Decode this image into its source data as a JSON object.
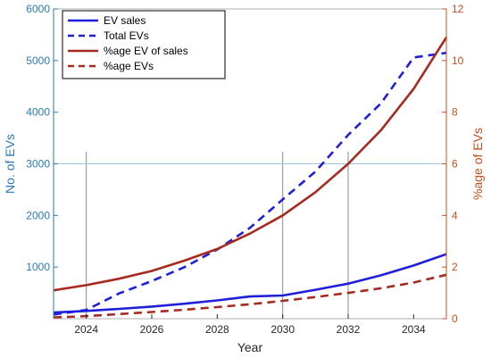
{
  "chart_data": {
    "type": "line",
    "xlabel": "Year",
    "ylabel_left": "No. of EVs",
    "ylabel_right": "%age of EVs",
    "xlim": [
      2023,
      2035
    ],
    "ylim_left": [
      0,
      6000
    ],
    "ylim_right": [
      0,
      12
    ],
    "x_ticks": [
      2024,
      2026,
      2028,
      2030,
      2032,
      2034
    ],
    "y_ticks_left": [
      1000,
      2000,
      3000,
      4000,
      5000,
      6000
    ],
    "y_ticks_right": [
      0,
      2,
      4,
      6,
      8,
      10,
      12
    ],
    "grid": "partial",
    "vertical_reference_lines": [
      2024,
      2030,
      2032
    ],
    "horizontal_reference_line_left": 3000,
    "legend_position": "top-left",
    "colors": {
      "left_axis": "#2a7ab9",
      "right_axis": "#c0501e",
      "blue_series": "#1f1fd9",
      "red_series": "#a62a1f",
      "ref_lines": "#8a8a8a"
    },
    "x": [
      2023,
      2024,
      2025,
      2026,
      2027,
      2028,
      2029,
      2030,
      2031,
      2032,
      2033,
      2034,
      2035
    ],
    "series": [
      {
        "name": "EV sales",
        "axis": "left",
        "style": "solid",
        "color": "#1f1fd9",
        "values": [
          120,
          150,
          190,
          235,
          290,
          355,
          430,
          450,
          560,
          680,
          840,
          1030,
          1250
        ]
      },
      {
        "name": "Total EVs",
        "axis": "left",
        "style": "dashed",
        "color": "#1f1fd9",
        "values": [
          80,
          170,
          490,
          730,
          1000,
          1340,
          1760,
          2310,
          2850,
          3560,
          4170,
          5060,
          5150
        ]
      },
      {
        "name": "%age EV of sales",
        "axis": "right",
        "style": "solid",
        "color": "#a62a1f",
        "values": [
          1.1,
          1.3,
          1.55,
          1.85,
          2.25,
          2.7,
          3.3,
          4.0,
          4.9,
          6.0,
          7.3,
          8.9,
          10.9
        ]
      },
      {
        "name": "%age EVs",
        "axis": "right",
        "style": "dashed",
        "color": "#a62a1f",
        "values": [
          0.05,
          0.1,
          0.18,
          0.26,
          0.35,
          0.45,
          0.56,
          0.69,
          0.84,
          1.0,
          1.18,
          1.4,
          1.7
        ]
      }
    ]
  }
}
